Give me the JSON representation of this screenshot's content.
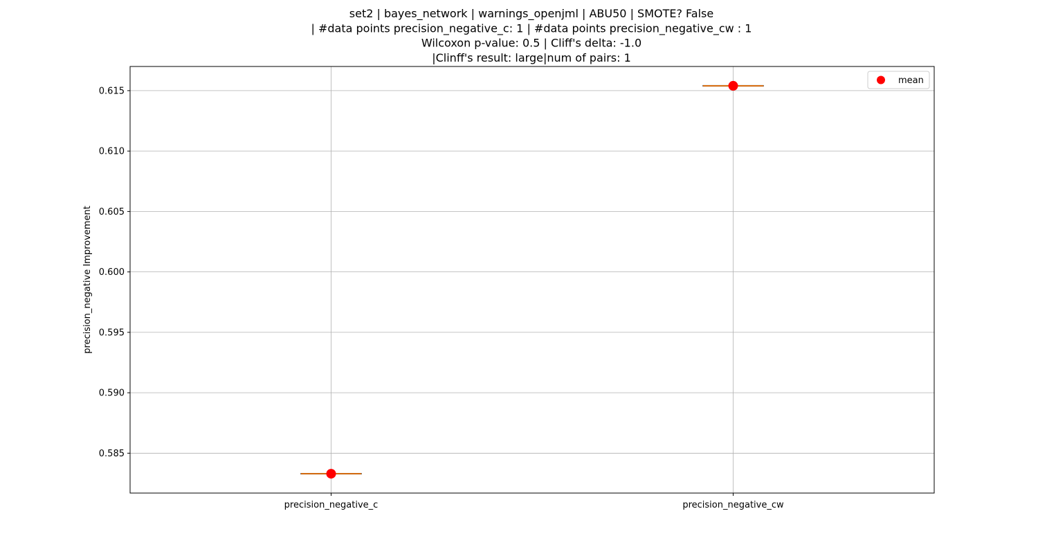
{
  "chart_data": {
    "type": "box",
    "title_lines": [
      "set2 | bayes_network | warnings_openjml | ABU50 | SMOTE? False",
      "| #data points precision_negative_c: 1 | #data points precision_negative_cw : 1",
      "Wilcoxon p-value: 0.5 | Cliff's delta: -1.0",
      "|Clinff's result: large|num of pairs: 1"
    ],
    "xlabel": "",
    "ylabel": "precision_negative Improvement",
    "categories": [
      "precision_negative_c",
      "precision_negative_cw"
    ],
    "values": [
      0.5833,
      0.6154
    ],
    "means": [
      0.5833,
      0.6154
    ],
    "ylim": [
      0.5817,
      0.617
    ],
    "yticks": [
      0.585,
      0.59,
      0.595,
      0.6,
      0.605,
      0.61,
      0.615
    ],
    "ytick_labels": [
      "0.585",
      "0.590",
      "0.595",
      "0.600",
      "0.605",
      "0.610",
      "0.615"
    ],
    "grid": true,
    "legend": {
      "placement": "upper right",
      "entries": [
        {
          "label": "mean",
          "color": "#ff0000",
          "marker": "circle"
        }
      ]
    },
    "colors": {
      "median": "#ff7f0e",
      "mean": "#ff0000",
      "box": "#000000",
      "grid": "#b0b0b0"
    }
  }
}
